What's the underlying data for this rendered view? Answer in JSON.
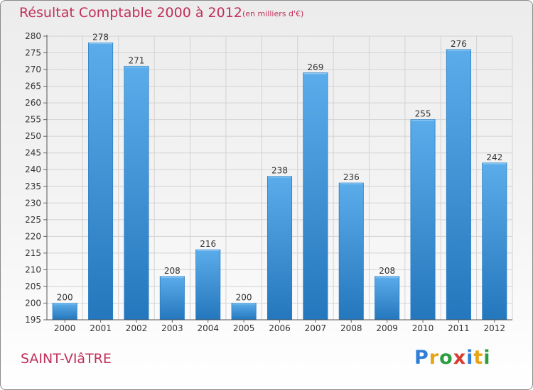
{
  "title": "Résultat Comptable 2000 à 2012",
  "subtitle": "(en milliers d'€)",
  "town": "SAINT-VIâTRE",
  "logo": {
    "text": "Proxiti",
    "colors": [
      "#2f7fd8",
      "#e8a317",
      "#2a9d3f",
      "#d83a2f",
      "#2f7fd8",
      "#e8a317",
      "#2a9d3f"
    ]
  },
  "chart_data": {
    "type": "bar",
    "title": "Résultat Comptable 2000 à 2012",
    "xlabel": "",
    "ylabel": "",
    "categories": [
      "2000",
      "2001",
      "2002",
      "2003",
      "2004",
      "2005",
      "2006",
      "2007",
      "2008",
      "2009",
      "2010",
      "2011",
      "2012"
    ],
    "values": [
      200,
      278,
      271,
      208,
      216,
      200,
      238,
      269,
      236,
      208,
      255,
      276,
      242
    ],
    "ylim": [
      195,
      280
    ],
    "ytick_step": 5,
    "grid": true,
    "bar_color": "#3a95dd",
    "bar_color_light": "#5aacea",
    "bar_color_dark": "#2577bd"
  }
}
